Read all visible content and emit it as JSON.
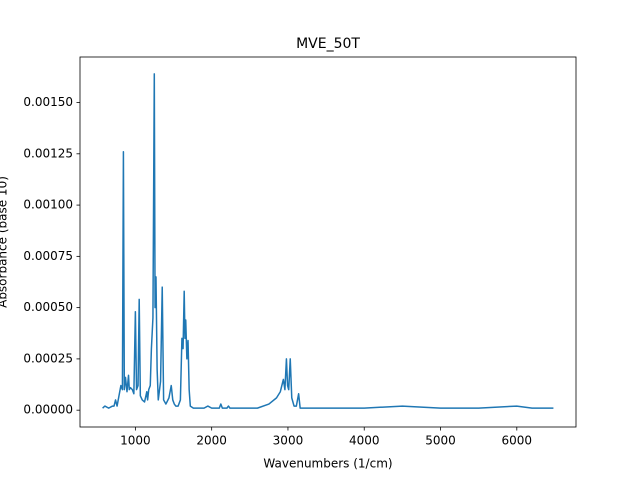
{
  "chart_data": {
    "type": "line",
    "title": "MVE_50T",
    "x_label": "Wavenumbers (1/cm)",
    "y_label": "Absorbance (base 10)",
    "xlim": [
      274,
      6776
    ],
    "ylim": [
      -8.2e-05,
      0.001722
    ],
    "xticks": [
      1000,
      2000,
      3000,
      4000,
      5000,
      6000
    ],
    "yticks": [
      {
        "value": 0,
        "label": "0.00000"
      },
      {
        "value": 0.00025,
        "label": "0.00025"
      },
      {
        "value": 0.0005,
        "label": "0.00050"
      },
      {
        "value": 0.00075,
        "label": "0.00075"
      },
      {
        "value": 0.001,
        "label": "0.00100"
      },
      {
        "value": 0.00125,
        "label": "0.00125"
      },
      {
        "value": 0.0015,
        "label": "0.00150"
      }
    ],
    "grid": false,
    "series": [
      {
        "color": "#1f77b4",
        "x": [
          570,
          600,
          650,
          700,
          720,
          740,
          760,
          790,
          810,
          830,
          843,
          855,
          870,
          890,
          910,
          920,
          935,
          960,
          980,
          1000,
          1015,
          1035,
          1050,
          1065,
          1090,
          1120,
          1150,
          1160,
          1175,
          1195,
          1210,
          1230,
          1248,
          1258,
          1270,
          1285,
          1300,
          1330,
          1352,
          1370,
          1400,
          1440,
          1470,
          1490,
          1510,
          1530,
          1560,
          1590,
          1610,
          1625,
          1640,
          1650,
          1660,
          1675,
          1690,
          1705,
          1720,
          1760,
          1800,
          1900,
          1950,
          2000,
          2100,
          2120,
          2140,
          2200,
          2220,
          2240,
          2400,
          2600,
          2750,
          2850,
          2900,
          2940,
          2960,
          2980,
          2995,
          3010,
          3030,
          3050,
          3080,
          3110,
          3140,
          3160,
          3200,
          3500,
          4000,
          4500,
          5000,
          5500,
          6000,
          6200,
          6480
        ],
        "values": [
          1e-05,
          2e-05,
          1e-05,
          2e-05,
          2e-05,
          5e-05,
          2e-05,
          8e-05,
          0.00012,
          0.0001,
          0.00126,
          0.0001,
          0.00016,
          9e-05,
          0.00017,
          0.0001,
          0.00011,
          0.0001,
          8e-05,
          0.00048,
          0.0001,
          0.00012,
          0.00054,
          7e-05,
          5e-05,
          4e-05,
          9e-05,
          5e-05,
          0.0001,
          0.00012,
          0.0003,
          0.00045,
          0.00164,
          0.0005,
          0.00065,
          0.0002,
          5e-05,
          0.00014,
          0.0006,
          5e-05,
          3e-05,
          6e-05,
          0.00012,
          5e-05,
          3e-05,
          2e-05,
          2e-05,
          5e-05,
          0.00035,
          0.0003,
          0.00058,
          0.00035,
          0.00044,
          0.00025,
          0.00034,
          0.0001,
          2e-05,
          1e-05,
          1e-05,
          1e-05,
          2e-05,
          1e-05,
          1e-05,
          3e-05,
          1e-05,
          1e-05,
          2e-05,
          1e-05,
          1e-05,
          1e-05,
          3e-05,
          6e-05,
          9e-05,
          0.00015,
          0.0001,
          0.00025,
          0.00012,
          0.0001,
          0.00025,
          6e-05,
          2e-05,
          2e-05,
          8e-05,
          1e-05,
          1e-05,
          1e-05,
          1e-05,
          2e-05,
          1e-05,
          1e-05,
          2e-05,
          1e-05,
          1e-05
        ]
      }
    ]
  }
}
